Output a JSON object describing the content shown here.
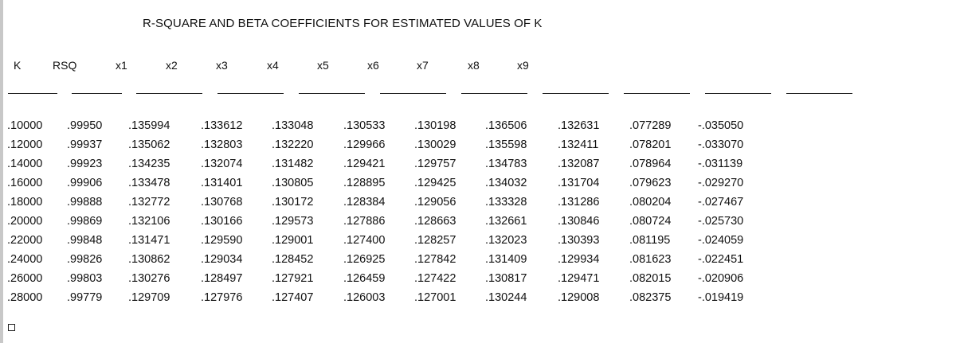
{
  "title": "R-SQUARE AND BETA COEFFICIENTS FOR ESTIMATED VALUES OF K",
  "columns": [
    "K",
    "RSQ",
    "x1",
    "x2",
    "x3",
    "x4",
    "x5",
    "x6",
    "x7",
    "x8",
    "x9"
  ],
  "rows": [
    [
      ".10000",
      ".99950",
      ".135994",
      ".133612",
      ".133048",
      ".130533",
      ".130198",
      ".136506",
      ".132631",
      ".077289",
      "-.035050"
    ],
    [
      ".12000",
      ".99937",
      ".135062",
      ".132803",
      ".132220",
      ".129966",
      ".130029",
      ".135598",
      ".132411",
      ".078201",
      "-.033070"
    ],
    [
      ".14000",
      ".99923",
      ".134235",
      ".132074",
      ".131482",
      ".129421",
      ".129757",
      ".134783",
      ".132087",
      ".078964",
      "-.031139"
    ],
    [
      ".16000",
      ".99906",
      ".133478",
      ".131401",
      ".130805",
      ".128895",
      ".129425",
      ".134032",
      ".131704",
      ".079623",
      "-.029270"
    ],
    [
      ".18000",
      ".99888",
      ".132772",
      ".130768",
      ".130172",
      ".128384",
      ".129056",
      ".133328",
      ".131286",
      ".080204",
      "-.027467"
    ],
    [
      ".20000",
      ".99869",
      ".132106",
      ".130166",
      ".129573",
      ".127886",
      ".128663",
      ".132661",
      ".130846",
      ".080724",
      "-.025730"
    ],
    [
      ".22000",
      ".99848",
      ".131471",
      ".129590",
      ".129001",
      ".127400",
      ".128257",
      ".132023",
      ".130393",
      ".081195",
      "-.024059"
    ],
    [
      ".24000",
      ".99826",
      ".130862",
      ".129034",
      ".128452",
      ".126925",
      ".127842",
      ".131409",
      ".129934",
      ".081623",
      "-.022451"
    ],
    [
      ".26000",
      ".99803",
      ".130276",
      ".128497",
      ".127921",
      ".126459",
      ".127422",
      ".130817",
      ".129471",
      ".082015",
      "-.020906"
    ],
    [
      ".28000",
      ".99779",
      ".129709",
      ".127976",
      ".127407",
      ".126003",
      ".127001",
      ".130244",
      ".129008",
      ".082375",
      "-.019419"
    ]
  ]
}
